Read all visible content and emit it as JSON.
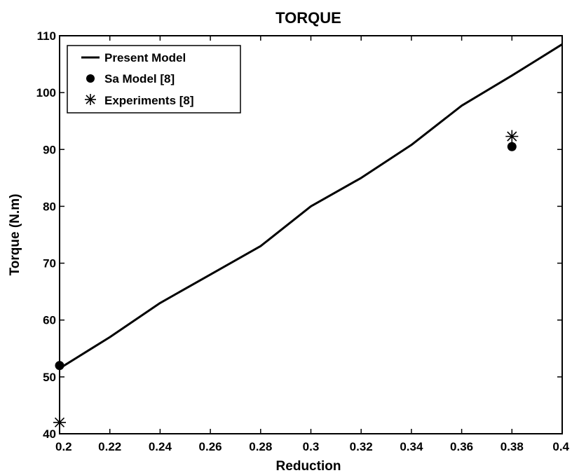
{
  "chart_data": {
    "type": "line",
    "title": "TORQUE",
    "xlabel": "Reduction",
    "ylabel": "Torque (N.m)",
    "xlim": [
      0.2,
      0.4
    ],
    "ylim": [
      40,
      110
    ],
    "x_ticks": [
      0.2,
      0.22,
      0.24,
      0.26,
      0.28,
      0.3,
      0.32,
      0.34,
      0.36,
      0.38,
      0.4
    ],
    "x_tick_labels": [
      "0.2",
      "0.22",
      "0.24",
      "0.26",
      "0.28",
      "0.3",
      "0.32",
      "0.34",
      "0.36",
      "0.38",
      "0.4"
    ],
    "y_ticks": [
      40,
      50,
      60,
      70,
      80,
      90,
      100,
      110
    ],
    "y_tick_labels": [
      "40",
      "50",
      "60",
      "70",
      "80",
      "90",
      "100",
      "110"
    ],
    "grid": false,
    "legend_position": "top-left",
    "series": [
      {
        "name": "Present Model",
        "style": "line",
        "color": "#000000",
        "x": [
          0.2,
          0.22,
          0.24,
          0.26,
          0.28,
          0.3,
          0.32,
          0.34,
          0.36,
          0.38,
          0.4
        ],
        "y": [
          51.5,
          57.0,
          63.0,
          68.0,
          73.0,
          80.0,
          85.0,
          90.8,
          97.7,
          103.0,
          108.5
        ]
      },
      {
        "name": "Sa Model [8]",
        "style": "marker-dot",
        "color": "#000000",
        "x": [
          0.2,
          0.38
        ],
        "y": [
          52.0,
          90.5
        ]
      },
      {
        "name": "Experiments [8]",
        "style": "marker-asterisk",
        "color": "#000000",
        "x": [
          0.2,
          0.38
        ],
        "y": [
          42.0,
          92.3
        ]
      }
    ]
  }
}
